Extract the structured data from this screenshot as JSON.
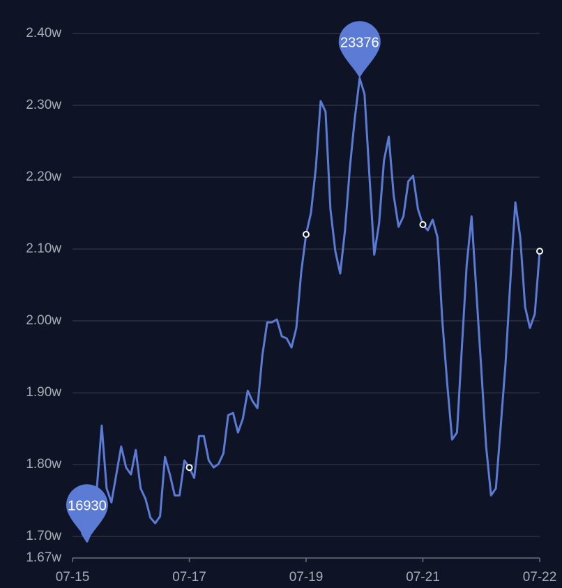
{
  "chart_data": {
    "type": "line",
    "categories": [
      "07-15",
      null,
      null,
      null,
      null,
      null,
      null,
      null,
      null,
      null,
      null,
      null,
      null,
      null,
      null,
      null,
      null,
      null,
      null,
      null,
      null,
      null,
      null,
      null,
      "07-17",
      null,
      null,
      null,
      null,
      null,
      null,
      null,
      null,
      null,
      null,
      null,
      null,
      null,
      null,
      null,
      null,
      null,
      null,
      null,
      null,
      null,
      null,
      null,
      "07-19",
      null,
      null,
      null,
      null,
      null,
      null,
      null,
      null,
      null,
      null,
      null,
      null,
      null,
      null,
      null,
      null,
      null,
      null,
      null,
      null,
      null,
      null,
      null,
      "07-21",
      null,
      null,
      null,
      null,
      null,
      null,
      null,
      null,
      null,
      null,
      null,
      null,
      null,
      null,
      null,
      null,
      null,
      null,
      null,
      null,
      null,
      null,
      null,
      "07-22"
    ],
    "values": [
      17621,
      17378,
      17038,
      16930,
      17086,
      17669,
      18543,
      17669,
      17475,
      17863,
      18252,
      17960,
      17863,
      18203,
      17669,
      17523,
      17261,
      17184,
      17281,
      18106,
      17863,
      17572,
      17572,
      18057,
      17960,
      17815,
      18397,
      18397,
      18057,
      17960,
      18009,
      18155,
      18689,
      18718,
      18446,
      18640,
      19028,
      18883,
      18786,
      19514,
      19980,
      19980,
      20019,
      19786,
      19757,
      19630,
      19902,
      20679,
      21204,
      21505,
      22136,
      23058,
      22912,
      21553,
      20970,
      20660,
      21262,
      22136,
      22815,
      23376,
      23155,
      22039,
      20922,
      21359,
      22233,
      22563,
      21747,
      21310,
      21456,
      21942,
      22019,
      21553,
      21340,
      21262,
      21408,
      21165,
      20000,
      19126,
      18349,
      18446,
      19611,
      20776,
      21456,
      20388,
      19320,
      18252,
      17572,
      17669,
      18543,
      19417,
      20582,
      21650,
      21165,
      20194,
      19902,
      20097,
      20970
    ],
    "color": "#5b7bd5",
    "ylim": [
      16700,
      24000
    ],
    "yticks": [
      {
        "value": 16700,
        "label": "1.67w"
      },
      {
        "value": 17000,
        "label": "1.70w"
      },
      {
        "value": 18000,
        "label": "1.80w"
      },
      {
        "value": 19000,
        "label": "1.90w"
      },
      {
        "value": 20000,
        "label": "2.00w"
      },
      {
        "value": 21000,
        "label": "2.10w"
      },
      {
        "value": 22000,
        "label": "2.20w"
      },
      {
        "value": 23000,
        "label": "2.30w"
      },
      {
        "value": 24000,
        "label": "2.40w"
      }
    ],
    "grid": true
  }
}
